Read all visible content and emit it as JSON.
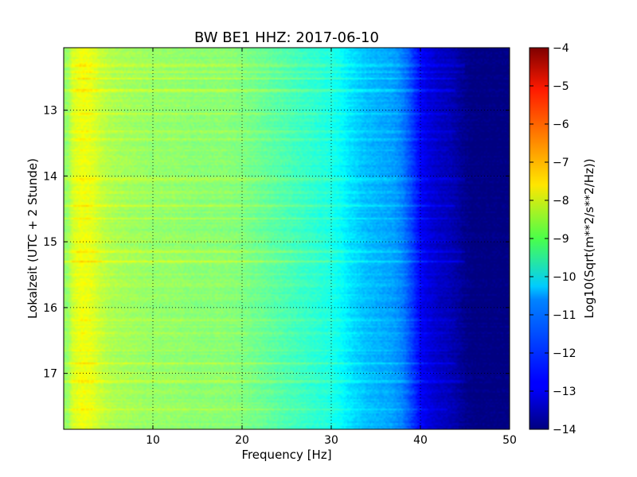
{
  "chart_data": {
    "type": "heatmap",
    "title": "BW BE1 HHZ: 2017-06-10",
    "xlabel": "Frequency [Hz]",
    "ylabel": "Lokalzeit (UTC + 2 Stunde)",
    "xlim": [
      0,
      50
    ],
    "ylim": [
      12.05,
      17.85
    ],
    "y_inverted": true,
    "x_ticks": [
      10,
      20,
      30,
      40,
      50
    ],
    "y_ticks": [
      13,
      14,
      15,
      16,
      17
    ],
    "grid": true,
    "colorscale": "jet",
    "colorbar": {
      "label": "Log10(Sqrt(m**2/s**2/Hz))",
      "range": [
        -14,
        -4
      ],
      "ticks": [
        -4,
        -5,
        -6,
        -7,
        -8,
        -9,
        -10,
        -11,
        -12,
        -13,
        -14
      ]
    },
    "frequency_profile": {
      "x": [
        0.5,
        1,
        2,
        3,
        4,
        5,
        6,
        8,
        10,
        12,
        15,
        18,
        20,
        22,
        25,
        28,
        30,
        31,
        32,
        33,
        34,
        35,
        36,
        37,
        38,
        39,
        40,
        41,
        42,
        43,
        44,
        45,
        46,
        48,
        50
      ],
      "values": [
        -8.8,
        -8.2,
        -7.9,
        -8.0,
        -8.3,
        -8.5,
        -8.6,
        -8.7,
        -8.8,
        -8.8,
        -8.9,
        -8.9,
        -9.0,
        -9.2,
        -9.5,
        -9.8,
        -10.0,
        -10.2,
        -10.5,
        -10.7,
        -10.9,
        -11.0,
        -11.1,
        -11.2,
        -11.5,
        -12.1,
        -12.8,
        -13.1,
        -13.3,
        -13.4,
        -13.6,
        -13.85,
        -14.0,
        -14.0,
        -14.0
      ]
    },
    "bright_bands": [
      {
        "time": 12.32,
        "width": 0.03,
        "offset": 0.6,
        "fmax": 45
      },
      {
        "time": 12.42,
        "width": 0.025,
        "offset": 0.5,
        "fmax": 45
      },
      {
        "time": 12.52,
        "width": 0.02,
        "offset": 0.45,
        "fmax": 44
      },
      {
        "time": 12.7,
        "width": 0.03,
        "offset": 0.6,
        "fmax": 44
      },
      {
        "time": 12.85,
        "width": 0.02,
        "offset": 0.35,
        "fmax": 43
      },
      {
        "time": 13.05,
        "width": 0.02,
        "offset": 0.35,
        "fmax": 43
      },
      {
        "time": 13.33,
        "width": 0.025,
        "offset": 0.45,
        "fmax": 44
      },
      {
        "time": 13.45,
        "width": 0.02,
        "offset": 0.4,
        "fmax": 43
      },
      {
        "time": 13.6,
        "width": 0.02,
        "offset": 0.35,
        "fmax": 43
      },
      {
        "time": 14.05,
        "width": 0.03,
        "offset": 0.6,
        "fmax": 45
      },
      {
        "time": 14.25,
        "width": 0.02,
        "offset": 0.35,
        "fmax": 42
      },
      {
        "time": 14.45,
        "width": 0.025,
        "offset": 0.5,
        "fmax": 44
      },
      {
        "time": 14.65,
        "width": 0.02,
        "offset": 0.35,
        "fmax": 43
      },
      {
        "time": 15.0,
        "width": 0.02,
        "offset": 0.35,
        "fmax": 43
      },
      {
        "time": 15.15,
        "width": 0.03,
        "offset": 0.55,
        "fmax": 45
      },
      {
        "time": 15.3,
        "width": 0.035,
        "offset": 0.65,
        "fmax": 45
      },
      {
        "time": 15.5,
        "width": 0.02,
        "offset": 0.35,
        "fmax": 43
      },
      {
        "time": 15.65,
        "width": 0.02,
        "offset": 0.3,
        "fmax": 42
      },
      {
        "time": 15.85,
        "width": 0.02,
        "offset": 0.3,
        "fmax": 42
      },
      {
        "time": 16.2,
        "width": 0.025,
        "offset": 0.45,
        "fmax": 44
      },
      {
        "time": 16.4,
        "width": 0.02,
        "offset": 0.35,
        "fmax": 43
      },
      {
        "time": 16.65,
        "width": 0.02,
        "offset": 0.35,
        "fmax": 43
      },
      {
        "time": 16.85,
        "width": 0.025,
        "offset": 0.5,
        "fmax": 44
      },
      {
        "time": 17.0,
        "width": 0.02,
        "offset": 0.35,
        "fmax": 43
      },
      {
        "time": 17.12,
        "width": 0.03,
        "offset": 0.6,
        "fmax": 45
      },
      {
        "time": 17.3,
        "width": 0.02,
        "offset": 0.3,
        "fmax": 42
      },
      {
        "time": 17.55,
        "width": 0.025,
        "offset": 0.45,
        "fmax": 43
      }
    ]
  }
}
